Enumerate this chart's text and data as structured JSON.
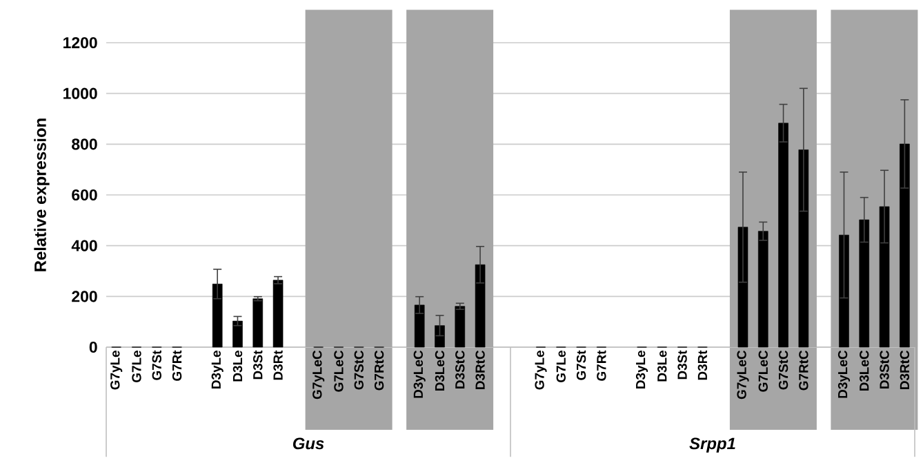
{
  "chart_data": {
    "type": "bar",
    "ylabel": "Relative expression",
    "categories": [
      "G7yLe",
      "G7Le",
      "G7St",
      "G7Rt",
      null,
      "D3yLe",
      "D3Le",
      "D3St",
      "D3Rt",
      null,
      "G7yLeC",
      "G7LeC",
      "G7StC",
      "G7RtC",
      null,
      "D3yLeC",
      "D3LeC",
      "D3StC",
      "D3RtC",
      null,
      null,
      "G7yLe",
      "G7Le",
      "G7St",
      "G7Rt",
      null,
      "D3yLe",
      "D3Le",
      "D3St",
      "D3Rt",
      null,
      "G7yLeC",
      "G7LeC",
      "G7StC",
      "G7RtC",
      null,
      "D3yLeC",
      "D3LeC",
      "D3StC",
      "D3RtC"
    ],
    "values": [
      0,
      0,
      0,
      0,
      null,
      249,
      103,
      191,
      264,
      null,
      0,
      0,
      0,
      0,
      null,
      166,
      85,
      161,
      325,
      null,
      null,
      0,
      0,
      0,
      0,
      null,
      0,
      0,
      0,
      0,
      null,
      473,
      457,
      883,
      778,
      null,
      442,
      502,
      554,
      801
    ],
    "errors": [
      null,
      null,
      null,
      null,
      null,
      58,
      18,
      8,
      14,
      null,
      null,
      null,
      null,
      null,
      null,
      33,
      40,
      12,
      72,
      null,
      null,
      null,
      null,
      null,
      null,
      null,
      null,
      null,
      null,
      null,
      null,
      217,
      36,
      74,
      242,
      null,
      248,
      88,
      143,
      174
    ],
    "color": "#000000",
    "ylim": [
      0,
      1200
    ],
    "yticks": [
      0,
      200,
      400,
      600,
      800,
      1000,
      1200
    ],
    "grid": "y",
    "bands": [
      {
        "axis": "x",
        "from": "G7yLeC",
        "to": "G7RtC",
        "color": "#a6a6a6"
      },
      {
        "axis": "x",
        "from": "D3yLeC",
        "to": "D3RtC",
        "color": "#a6a6a6"
      }
    ],
    "annotations": [
      "Gus",
      "Srpp1"
    ]
  }
}
